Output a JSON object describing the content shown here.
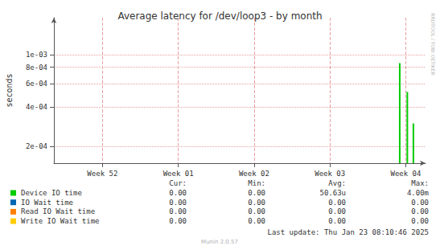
{
  "chart_data": {
    "type": "bar",
    "title": "Average latency for /dev/loop3 - by month",
    "y_label": "seconds",
    "side_text": "RRDTOOL / TOBI OETIKER",
    "log": "y",
    "grid": true,
    "x": [
      56.42,
      56.52,
      56.6
    ],
    "xlim": [
      51.86,
      56.76
    ],
    "xticks": [
      {
        "value": 52.5,
        "label": "Week 52"
      },
      {
        "value": 53.5,
        "label": "Week 01"
      },
      {
        "value": 54.5,
        "label": "Week 02"
      },
      {
        "value": 55.5,
        "label": "Week 03"
      },
      {
        "value": 56.5,
        "label": "Week 04"
      }
    ],
    "ylim": [
      0.00015,
      0.0019
    ],
    "yticks": [
      {
        "value": 0.0002,
        "label": "2e-04"
      },
      {
        "value": 0.0004,
        "label": "4e-04"
      },
      {
        "value": 0.0006,
        "label": "6e-04"
      },
      {
        "value": 0.0008,
        "label": "8e-04"
      },
      {
        "value": 0.001,
        "label": "1e-03"
      }
    ],
    "stat_headers": [
      "Cur:",
      "Min:",
      "Avg:",
      "Max:"
    ],
    "series": [
      {
        "name": "Device IO time",
        "color": "#00cc00",
        "values": [
          0.00086,
          0.00052,
          0.0003
        ],
        "stats": [
          "0.00",
          "0.00",
          "50.63u",
          "4.00m"
        ]
      },
      {
        "name": "IO Wait time",
        "color": "#0066b3",
        "values": [
          null,
          null,
          null
        ],
        "stats": [
          "0.00",
          "0.00",
          "0.00",
          "0.00"
        ]
      },
      {
        "name": "Read IO Wait time",
        "color": "#ff8000",
        "values": [
          null,
          null,
          null
        ],
        "stats": [
          "0.00",
          "0.00",
          "0.00",
          "0.00"
        ]
      },
      {
        "name": "Write IO Wait time",
        "color": "#ffcc00",
        "values": [
          null,
          null,
          null
        ],
        "stats": [
          "0.00",
          "0.00",
          "0.00",
          "0.00"
        ]
      }
    ],
    "last_update": "Last update: Thu Jan 23 08:10:46 2025",
    "footer": "Munin 2.0.57"
  }
}
